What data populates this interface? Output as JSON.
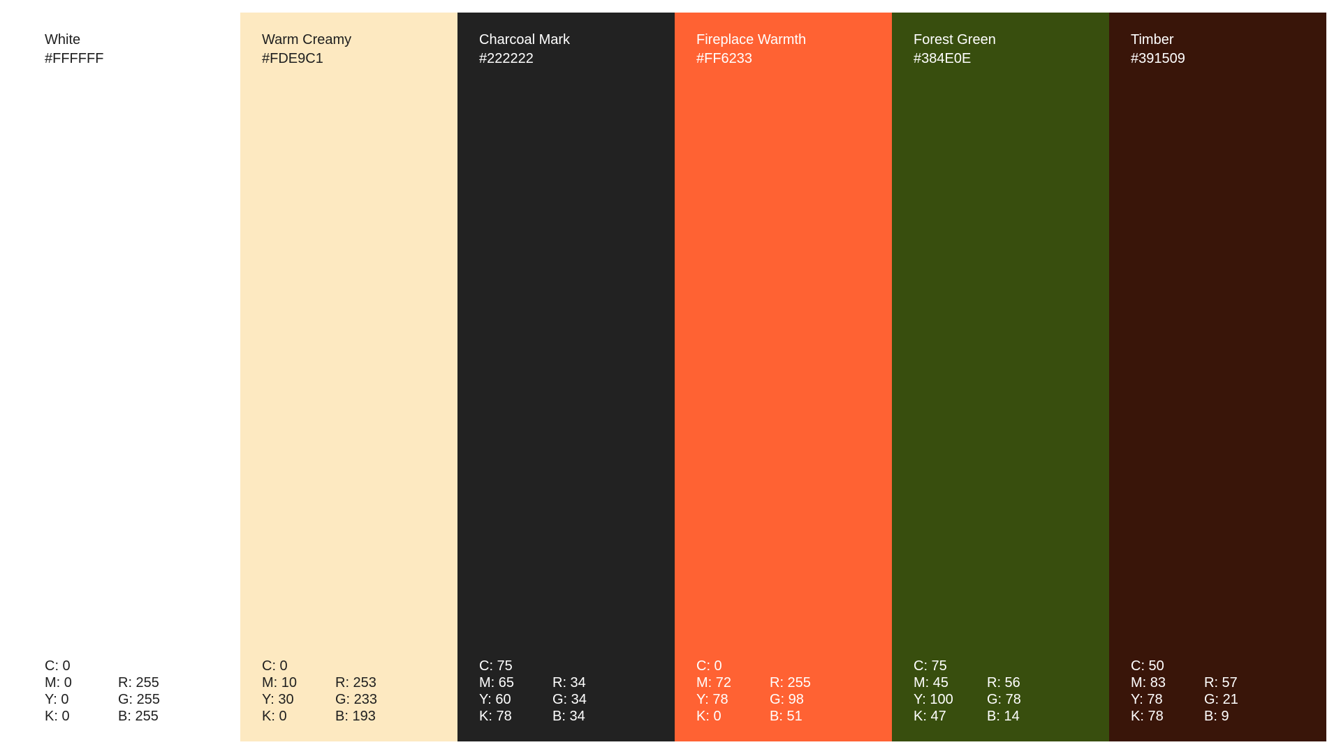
{
  "swatches": [
    {
      "name": "White",
      "hex": "#FFFFFF",
      "color": "#FFFFFF",
      "text_color": "#1E1E1E",
      "cmyk": [
        "C: 0",
        "M: 0",
        "Y: 0",
        "K: 0"
      ],
      "rgb": [
        "R: 255",
        "G: 255",
        "B: 255"
      ]
    },
    {
      "name": "Warm Creamy",
      "hex": "#FDE9C1",
      "color": "#FDE9C1",
      "text_color": "#1E1E1E",
      "cmyk": [
        "C: 0",
        "M: 10",
        "Y: 30",
        "K: 0"
      ],
      "rgb": [
        "R: 253",
        "G: 233",
        "B: 193"
      ]
    },
    {
      "name": "Charcoal Mark",
      "hex": "#222222",
      "color": "#222222",
      "text_color": "#FFFFFF",
      "cmyk": [
        "C: 75",
        "M: 65",
        "Y: 60",
        "K: 78"
      ],
      "rgb": [
        "R: 34",
        "G: 34",
        "B: 34"
      ]
    },
    {
      "name": "Fireplace Warmth",
      "hex": "#FF6233",
      "color": "#FF6233",
      "text_color": "#FFFFFF",
      "cmyk": [
        "C: 0",
        "M: 72",
        "Y: 78",
        "K: 0"
      ],
      "rgb": [
        "R: 255",
        "G: 98",
        "B: 51"
      ]
    },
    {
      "name": "Forest Green",
      "hex": "#384E0E",
      "color": "#384E0E",
      "text_color": "#FFFFFF",
      "cmyk": [
        "C: 75",
        "M: 45",
        "Y: 100",
        "K: 47"
      ],
      "rgb": [
        "R: 56",
        "G: 78",
        "B: 14"
      ]
    },
    {
      "name": "Timber",
      "hex": "#391509",
      "color": "#391509",
      "text_color": "#FFFFFF",
      "cmyk": [
        "C: 50",
        "M: 83",
        "Y: 78",
        "K: 78"
      ],
      "rgb": [
        "R: 57",
        "G: 21",
        "B: 9"
      ]
    }
  ]
}
